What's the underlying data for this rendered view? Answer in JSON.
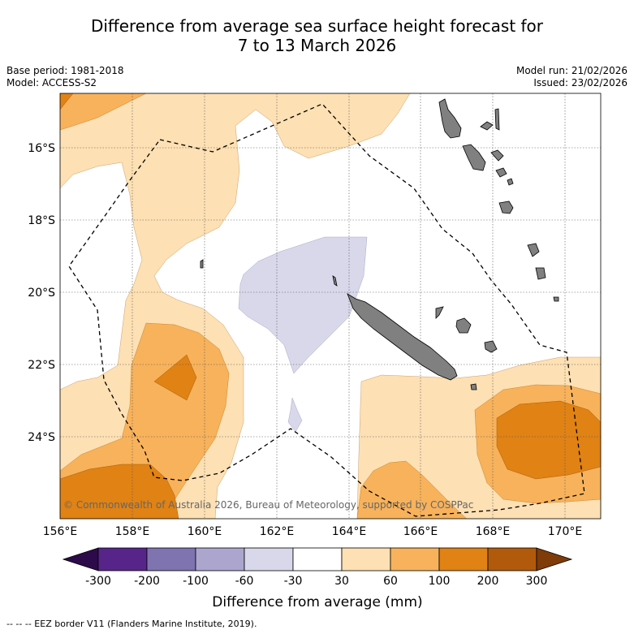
{
  "title_line1": "Difference from average sea surface height forecast for",
  "title_line2": "7 to 13 March 2026",
  "meta": {
    "base_period": "Base period: 1981-2018",
    "model": "Model: ACCESS-S2",
    "model_run": "Model run: 21/02/2026",
    "issued": "Issued: 23/02/2026"
  },
  "map": {
    "lon_labels": [
      "156°E",
      "158°E",
      "160°E",
      "162°E",
      "164°E",
      "166°E",
      "168°E",
      "170°E"
    ],
    "lat_labels": [
      "16°S",
      "18°S",
      "20°S",
      "22°S",
      "24°S"
    ],
    "copyright": "© Commonwealth of Australia 2026, Bureau of Meteorology, supported by COSPPac",
    "land_color": "#808080"
  },
  "colorbar": {
    "title": "Difference from average (mm)",
    "tick_labels": [
      "-300",
      "-200",
      "-100",
      "-60",
      "-30",
      "30",
      "60",
      "100",
      "200",
      "300"
    ],
    "colors": {
      "under": "#2d0a4a",
      "c1": "#57258a",
      "c2": "#7f73b0",
      "c3": "#aca6cf",
      "c4": "#d8d8ea",
      "c5": "#ffffff",
      "c6": "#fde0b3",
      "c7": "#f7b25b",
      "c8": "#e08214",
      "c9": "#b25a0b",
      "over": "#7f3b08"
    }
  },
  "legend_note": "--  --  -- EEZ border V11 (Flanders Marine Institute, 2019)."
}
